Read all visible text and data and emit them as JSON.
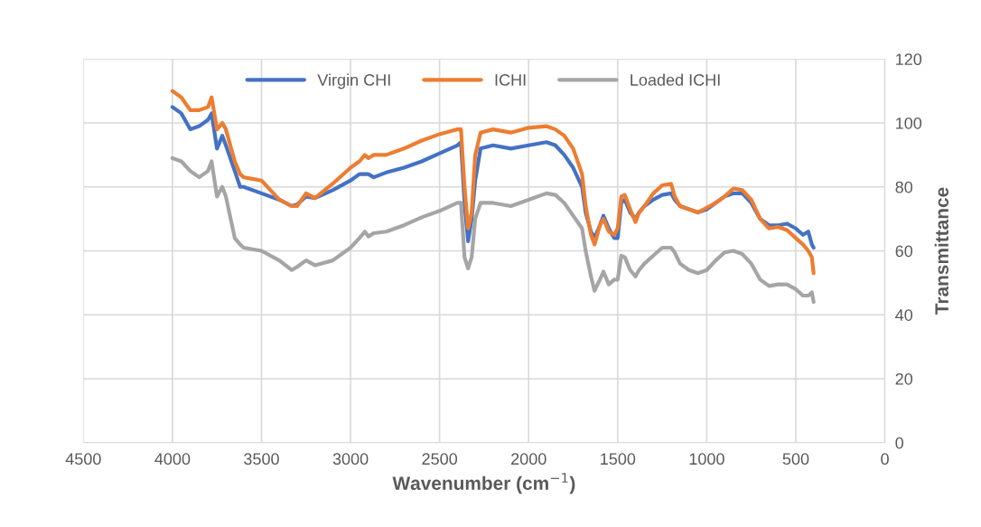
{
  "chart_data": {
    "type": "line",
    "xlabel": "Wavenumber (cm$^{−1}$)",
    "ylabel": "Transmittance",
    "xlim": [
      4500,
      0
    ],
    "xticks": [
      4500,
      4000,
      3500,
      3000,
      2500,
      2000,
      1500,
      1000,
      500,
      0
    ],
    "ylim": [
      0,
      120
    ],
    "yticks": [
      0,
      20,
      40,
      60,
      80,
      100,
      120
    ],
    "grid": true,
    "legend": "top",
    "marker": "none",
    "line_style": "solid",
    "x": [
      4000,
      3950,
      3900,
      3850,
      3800,
      3780,
      3750,
      3720,
      3700,
      3650,
      3620,
      3600,
      3500,
      3400,
      3330,
      3300,
      3250,
      3200,
      3100,
      3000,
      2950,
      2920,
      2900,
      2870,
      2800,
      2700,
      2600,
      2500,
      2400,
      2380,
      2360,
      2340,
      2320,
      2300,
      2270,
      2200,
      2100,
      2000,
      1900,
      1850,
      1800,
      1750,
      1700,
      1680,
      1650,
      1630,
      1600,
      1580,
      1550,
      1520,
      1500,
      1480,
      1460,
      1430,
      1400,
      1380,
      1350,
      1300,
      1250,
      1200,
      1180,
      1150,
      1100,
      1050,
      1000,
      950,
      900,
      850,
      800,
      750,
      700,
      650,
      600,
      550,
      500,
      460,
      430,
      410,
      400
    ],
    "series": [
      {
        "name": "Virgin CHI",
        "color": "#4472c4",
        "values": [
          105,
          103,
          98,
          99,
          101,
          103,
          92,
          96,
          93,
          85,
          80,
          80,
          78,
          76,
          74,
          74.5,
          77,
          76.5,
          79,
          82,
          84,
          84,
          84,
          83,
          84.5,
          86,
          88,
          90.5,
          93,
          94,
          75,
          63,
          70,
          82,
          92,
          93,
          92,
          93,
          94,
          93,
          90,
          86,
          80,
          72,
          66,
          64,
          68,
          71,
          67,
          64,
          64,
          75,
          76,
          72,
          70,
          72,
          74,
          76,
          77.5,
          78,
          76,
          74,
          73,
          72,
          73,
          75,
          77,
          78,
          78,
          75,
          70,
          68,
          68,
          68.5,
          67,
          65,
          66,
          62,
          61
        ]
      },
      {
        "name": "ICHI",
        "color": "#ed7d31",
        "values": [
          110,
          108,
          104,
          104,
          105,
          108,
          98,
          100,
          98,
          88,
          84,
          83,
          82,
          76,
          74,
          74,
          78,
          76.5,
          81,
          86,
          88,
          90,
          89,
          90,
          90,
          92,
          94.5,
          96.5,
          98,
          98,
          80,
          67,
          72,
          90,
          97,
          98,
          97,
          98.5,
          99,
          98,
          96,
          92,
          84,
          74,
          65,
          62,
          68,
          70,
          66,
          65,
          67,
          77,
          77.5,
          73,
          69,
          72,
          74,
          78,
          80.5,
          81,
          77,
          74,
          73,
          72,
          73.5,
          75,
          77,
          79.5,
          79,
          76,
          70,
          67,
          67.5,
          66.5,
          64,
          62,
          60,
          58,
          53
        ]
      },
      {
        "name": "Loaded ICHI",
        "color": "#a5a5a5",
        "values": [
          89,
          88,
          85,
          83,
          85,
          88,
          77,
          80,
          77,
          64,
          62,
          61,
          60,
          57,
          54,
          55,
          57,
          55.5,
          57,
          61,
          64,
          66,
          64.5,
          65.5,
          66,
          68,
          70.5,
          72.5,
          75,
          75,
          58,
          54.5,
          58,
          70,
          75,
          75,
          74,
          76,
          78,
          77.5,
          75,
          71,
          67,
          60,
          52,
          47.5,
          51,
          53.5,
          49.5,
          51,
          51,
          58.5,
          58,
          54,
          52,
          54,
          56,
          58.5,
          61,
          61,
          59.5,
          56,
          54,
          53,
          54,
          57,
          59.5,
          60,
          59,
          56,
          51,
          49,
          49.5,
          49.5,
          48,
          46,
          46,
          47,
          44
        ]
      }
    ]
  }
}
